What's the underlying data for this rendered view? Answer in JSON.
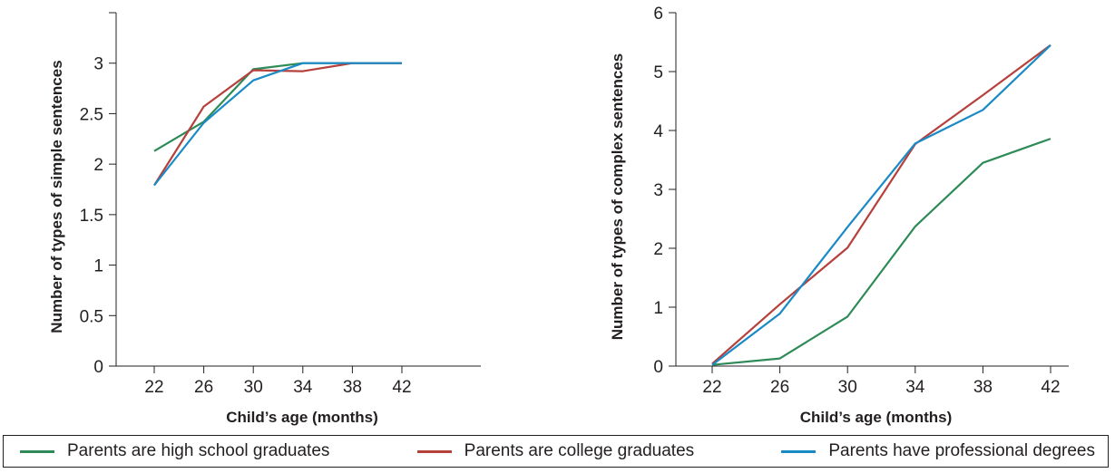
{
  "chart_data": [
    {
      "type": "line",
      "title": "",
      "xlabel": "Child’s age (months)",
      "ylabel": "Number of types of simple sentences",
      "x": [
        22,
        26,
        30,
        34,
        38,
        42
      ],
      "x_ticks": [
        "22",
        "26",
        "30",
        "34",
        "38",
        "42"
      ],
      "ylim": [
        0,
        3.5
      ],
      "y_ticks": [
        0,
        0.5,
        1,
        1.5,
        2,
        2.5,
        3
      ],
      "y_tick_labels": [
        "0",
        "0.5",
        "1",
        "1.5",
        "2",
        "2.5",
        "3"
      ],
      "series": [
        {
          "name": "Parents are high school graduates",
          "color": "#2e8b57",
          "values": [
            2.13,
            2.42,
            2.94,
            3.0,
            3.0,
            3.0
          ]
        },
        {
          "name": "Parents are college graduates",
          "color": "#b5403c",
          "values": [
            1.79,
            2.57,
            2.93,
            2.92,
            3.0,
            3.0
          ]
        },
        {
          "name": "Parents have professional degrees",
          "color": "#1a8ac7",
          "values": [
            1.79,
            2.41,
            2.83,
            3.0,
            3.0,
            3.0
          ]
        }
      ]
    },
    {
      "type": "line",
      "title": "",
      "xlabel": "Child’s age (months)",
      "ylabel": "Number of types of complex sentences",
      "x": [
        22,
        26,
        30,
        34,
        38,
        42
      ],
      "x_ticks": [
        "22",
        "26",
        "30",
        "34",
        "38",
        "42"
      ],
      "ylim": [
        0,
        6
      ],
      "y_ticks": [
        0,
        1,
        2,
        3,
        4,
        5,
        6
      ],
      "y_tick_labels": [
        "0",
        "1",
        "2",
        "3",
        "4",
        "5",
        "6"
      ],
      "series": [
        {
          "name": "Parents are high school graduates",
          "color": "#2e8b57",
          "values": [
            0.02,
            0.13,
            0.84,
            2.37,
            3.45,
            3.86
          ]
        },
        {
          "name": "Parents are college graduates",
          "color": "#b5403c",
          "values": [
            0.04,
            1.05,
            2.01,
            3.77,
            4.6,
            5.45
          ]
        },
        {
          "name": "Parents have professional degrees",
          "color": "#1a8ac7",
          "values": [
            0.02,
            0.89,
            2.36,
            3.78,
            4.35,
            5.45
          ]
        }
      ]
    }
  ],
  "legend": {
    "items": [
      {
        "label": "Parents are high school graduates",
        "color": "#2e8b57"
      },
      {
        "label": "Parents are college graduates",
        "color": "#b5403c"
      },
      {
        "label": "Parents have professional degrees",
        "color": "#1a8ac7"
      }
    ]
  }
}
